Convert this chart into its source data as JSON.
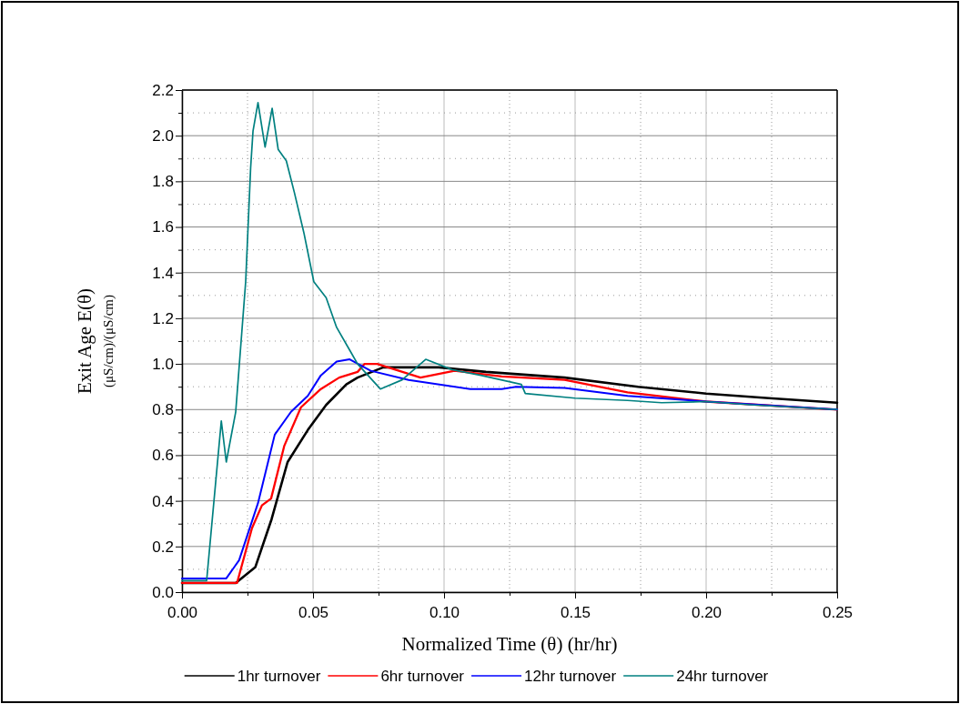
{
  "chart_data": {
    "type": "line",
    "xlabel": "Normalized Time (θ) (hr/hr)",
    "ylabel": "Exit Age E(θ)\n(μS/cm)/(μS/cm)",
    "xlim": [
      0,
      0.25
    ],
    "xticks": [
      {
        "value": 0,
        "label": "0.00"
      },
      {
        "value": 0.025,
        "label": null
      },
      {
        "value": 0.05,
        "label": "0.05"
      },
      {
        "value": 0.075,
        "label": null
      },
      {
        "value": 0.1,
        "label": "0.10"
      },
      {
        "value": 0.125,
        "label": null
      },
      {
        "value": 0.15,
        "label": "0.15"
      },
      {
        "value": 0.175,
        "label": null
      },
      {
        "value": 0.2,
        "label": "0.20"
      },
      {
        "value": 0.225,
        "label": null
      },
      {
        "value": 0.25,
        "label": "0.25"
      }
    ],
    "ylim": [
      0,
      2.2
    ],
    "yticks": [
      {
        "value": 0,
        "label": "0.0"
      },
      {
        "value": 0.1,
        "label": null
      },
      {
        "value": 0.2,
        "label": "0.2"
      },
      {
        "value": 0.3,
        "label": null
      },
      {
        "value": 0.4,
        "label": "0.4"
      },
      {
        "value": 0.5,
        "label": null
      },
      {
        "value": 0.6,
        "label": "0.6"
      },
      {
        "value": 0.7,
        "label": null
      },
      {
        "value": 0.8,
        "label": "0.8"
      },
      {
        "value": 0.9,
        "label": null
      },
      {
        "value": 1,
        "label": "1.0"
      },
      {
        "value": 1.1,
        "label": null
      },
      {
        "value": 1.2,
        "label": "1.2"
      },
      {
        "value": 1.3,
        "label": null
      },
      {
        "value": 1.4,
        "label": "1.4"
      },
      {
        "value": 1.5,
        "label": null
      },
      {
        "value": 1.6,
        "label": "1.6"
      },
      {
        "value": 1.7,
        "label": null
      },
      {
        "value": 1.8,
        "label": "1.8"
      },
      {
        "value": 1.9,
        "label": null
      },
      {
        "value": 2,
        "label": "2.0"
      },
      {
        "value": 2.1,
        "label": null
      },
      {
        "value": 2.2,
        "label": "2.2"
      }
    ],
    "grid": true,
    "legend": "bottom",
    "marker": "none",
    "line_style": "solid",
    "series": [
      {
        "name": "1hr turnover",
        "color": "#000000",
        "x": [
          0,
          0.0205,
          0.028,
          0.0342,
          0.0403,
          0.048,
          0.055,
          0.0627,
          0.067,
          0.0768,
          0.098,
          0.116,
          0.146,
          0.174,
          0.2,
          0.224,
          0.25
        ],
        "values": [
          0.04,
          0.04,
          0.11,
          0.32,
          0.57,
          0.71,
          0.82,
          0.91,
          0.94,
          0.985,
          0.985,
          0.965,
          0.94,
          0.9,
          0.87,
          0.85,
          0.83
        ]
      },
      {
        "name": "6hr turnover",
        "color": "#ff0000",
        "x": [
          0,
          0.021,
          0.0267,
          0.0305,
          0.034,
          0.039,
          0.0454,
          0.053,
          0.06,
          0.067,
          0.0697,
          0.0745,
          0.091,
          0.104,
          0.122,
          0.146,
          0.17,
          0.2,
          0.25
        ],
        "values": [
          0.04,
          0.04,
          0.28,
          0.38,
          0.41,
          0.64,
          0.81,
          0.89,
          0.94,
          0.965,
          1,
          1,
          0.94,
          0.97,
          0.945,
          0.93,
          0.875,
          0.835,
          0.8
        ]
      },
      {
        "name": "12hr turnover",
        "color": "#0000ff",
        "x": [
          0,
          0.0169,
          0.0218,
          0.029,
          0.0354,
          0.0416,
          0.048,
          0.053,
          0.059,
          0.064,
          0.072,
          0.0865,
          0.11,
          0.122,
          0.1275,
          0.146,
          0.17,
          0.2,
          0.25
        ],
        "values": [
          0.06,
          0.06,
          0.14,
          0.39,
          0.69,
          0.79,
          0.86,
          0.95,
          1.01,
          1.02,
          0.97,
          0.93,
          0.89,
          0.89,
          0.9,
          0.895,
          0.86,
          0.835,
          0.8
        ]
      },
      {
        "name": "24hr turnover",
        "color": "#008080",
        "x": [
          0,
          0.0094,
          0.015,
          0.0169,
          0.0205,
          0.0243,
          0.0262,
          0.0271,
          0.029,
          0.0317,
          0.0344,
          0.0367,
          0.0398,
          0.0429,
          0.0466,
          0.0503,
          0.055,
          0.059,
          0.064,
          0.067,
          0.0757,
          0.084,
          0.093,
          0.103,
          0.114,
          0.1295,
          0.131,
          0.15,
          0.17,
          0.183,
          0.2,
          0.218,
          0.25
        ],
        "values": [
          0.05,
          0.05,
          0.75,
          0.57,
          0.79,
          1.36,
          1.86,
          2.02,
          2.145,
          1.95,
          2.12,
          1.94,
          1.89,
          1.75,
          1.57,
          1.36,
          1.29,
          1.16,
          1.06,
          1,
          0.89,
          0.93,
          1.02,
          0.975,
          0.95,
          0.91,
          0.87,
          0.85,
          0.84,
          0.83,
          0.835,
          0.82,
          0.8
        ]
      }
    ]
  }
}
